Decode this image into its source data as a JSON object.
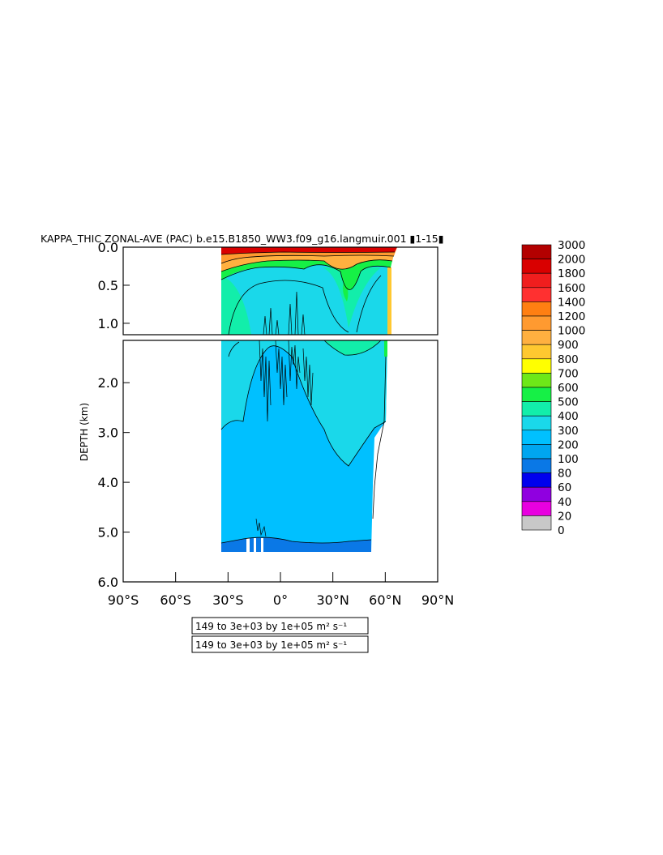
{
  "chart_data": {
    "type": "heatmap",
    "title": "KAPPA_THIC ZONAL-AVE (PAC) b.e15.B1850_WW3.f09_g16.langmuir.001 ▮1-15▮",
    "ylabel": "DEPTH (km)",
    "xlabel": "",
    "x_ticks": [
      "90°S",
      "60°S",
      "30°S",
      "0°",
      "30°N",
      "60°N",
      "90°N"
    ],
    "x_tick_values": [
      -90,
      -60,
      -30,
      0,
      30,
      60,
      90
    ],
    "upper_y_ticks": [
      "0.0",
      "0.5",
      "1.0"
    ],
    "upper_y_tick_values": [
      0.0,
      0.5,
      1.0
    ],
    "upper_ylim": [
      0.0,
      1.15
    ],
    "lower_y_ticks": [
      "2.0",
      "3.0",
      "4.0",
      "5.0",
      "6.0"
    ],
    "lower_y_tick_values": [
      2.0,
      3.0,
      4.0,
      5.0,
      6.0
    ],
    "lower_ylim": [
      1.15,
      6.0
    ],
    "xlim": [
      -90,
      90
    ],
    "data_extent_lat": [
      -34,
      62
    ],
    "colorbar": {
      "levels": [
        "3000",
        "2000",
        "1800",
        "1600",
        "1400",
        "1200",
        "1000",
        "900",
        "800",
        "700",
        "600",
        "500",
        "400",
        "300",
        "200",
        "100",
        "80",
        "60",
        "40",
        "20",
        "0"
      ],
      "colors": [
        "#b30000",
        "#d90000",
        "#f01e1e",
        "#ff3030",
        "#ff7f12",
        "#ff9a30",
        "#ffb040",
        "#ffc830",
        "#ffff00",
        "#6ee818",
        "#16f046",
        "#12eeaa",
        "#1ad8ea",
        "#00c0ff",
        "#00a6f0",
        "#0a78e6",
        "#0000ee",
        "#9000e0",
        "#e800e0",
        "#c8c8c8",
        "#707070"
      ]
    },
    "range_notes": [
      "149 to 3e+03 by 1e+05 m² s⁻¹",
      "149 to 3e+03 by 1e+05 m² s⁻¹"
    ]
  }
}
